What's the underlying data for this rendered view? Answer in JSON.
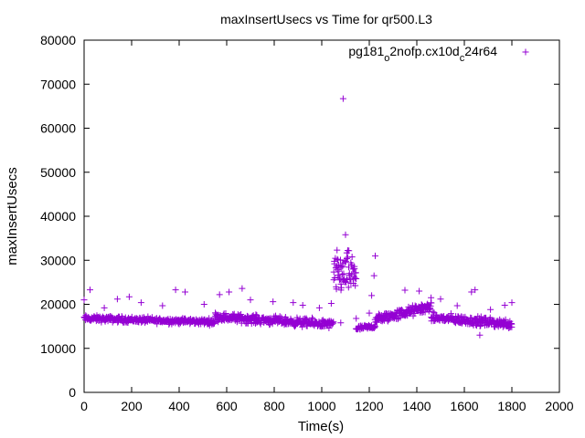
{
  "chart_data": {
    "type": "scatter",
    "title": "maxInsertUsecs vs Time for qr500.L3",
    "xlabel": "Time(s)",
    "ylabel": "maxInsertUsecs",
    "xlim": [
      0,
      2000
    ],
    "ylim": [
      0,
      80000
    ],
    "x_ticks": [
      0,
      200,
      400,
      600,
      800,
      1000,
      1200,
      1400,
      1600,
      1800,
      2000
    ],
    "y_ticks": [
      0,
      10000,
      20000,
      30000,
      40000,
      50000,
      60000,
      70000,
      80000
    ],
    "legend": {
      "position": "top-right",
      "label_parts": [
        "pg181",
        "o",
        "2nofp.cx10d",
        "c",
        "24r64"
      ]
    },
    "marker": "+",
    "series_color": "#9400d3",
    "series": [
      {
        "name": "pg181_o2nofp.cx10d_c24r64",
        "segments": [
          {
            "x_range": [
              0,
              550
            ],
            "points": 300,
            "base": 16800,
            "end": 16000,
            "noise": 1000,
            "outliers": [
              [
                0,
                21000
              ],
              [
                25,
                23300
              ],
              [
                85,
                19200
              ],
              [
                140,
                21200
              ],
              [
                190,
                21700
              ],
              [
                240,
                20400
              ],
              [
                330,
                19700
              ],
              [
                385,
                23300
              ],
              [
                425,
                22800
              ],
              [
                505,
                20000
              ]
            ]
          },
          {
            "x_range": [
              550,
              1050
            ],
            "points": 300,
            "base": 17200,
            "end": 15400,
            "noise": 1400,
            "outliers": [
              [
                570,
                22200
              ],
              [
                610,
                22800
              ],
              [
                665,
                23600
              ],
              [
                700,
                21000
              ],
              [
                795,
                20600
              ],
              [
                880,
                20400
              ],
              [
                920,
                19800
              ],
              [
                990,
                19200
              ],
              [
                1040,
                20200
              ]
            ]
          },
          {
            "x_range": [
              1050,
              1145
            ],
            "points": 70,
            "base": 27000,
            "end": 27000,
            "noise": 7000,
            "outliers": [
              [
                1090,
                66700
              ],
              [
                1080,
                15800
              ],
              [
                1100,
                35800
              ],
              [
                1145,
                16800
              ]
            ]
          },
          {
            "x_range": [
              1145,
              1225
            ],
            "points": 45,
            "base": 14500,
            "end": 15000,
            "noise": 800,
            "outliers": [
              [
                1225,
                31000
              ],
              [
                1220,
                26500
              ],
              [
                1210,
                22000
              ],
              [
                1200,
                18000
              ]
            ]
          },
          {
            "x_range": [
              1225,
              1460
            ],
            "points": 150,
            "base": 16500,
            "end": 19500,
            "noise": 1700,
            "outliers": [
              [
                1350,
                23200
              ],
              [
                1410,
                23000
              ],
              [
                1460,
                21500
              ]
            ]
          },
          {
            "x_range": [
              1460,
              1800
            ],
            "points": 200,
            "base": 17000,
            "end": 15500,
            "noise": 1500,
            "outliers": [
              [
                1500,
                21200
              ],
              [
                1570,
                19700
              ],
              [
                1630,
                22800
              ],
              [
                1645,
                23300
              ],
              [
                1665,
                13000
              ],
              [
                1710,
                18800
              ],
              [
                1770,
                19800
              ],
              [
                1800,
                20400
              ]
            ]
          }
        ]
      }
    ]
  }
}
